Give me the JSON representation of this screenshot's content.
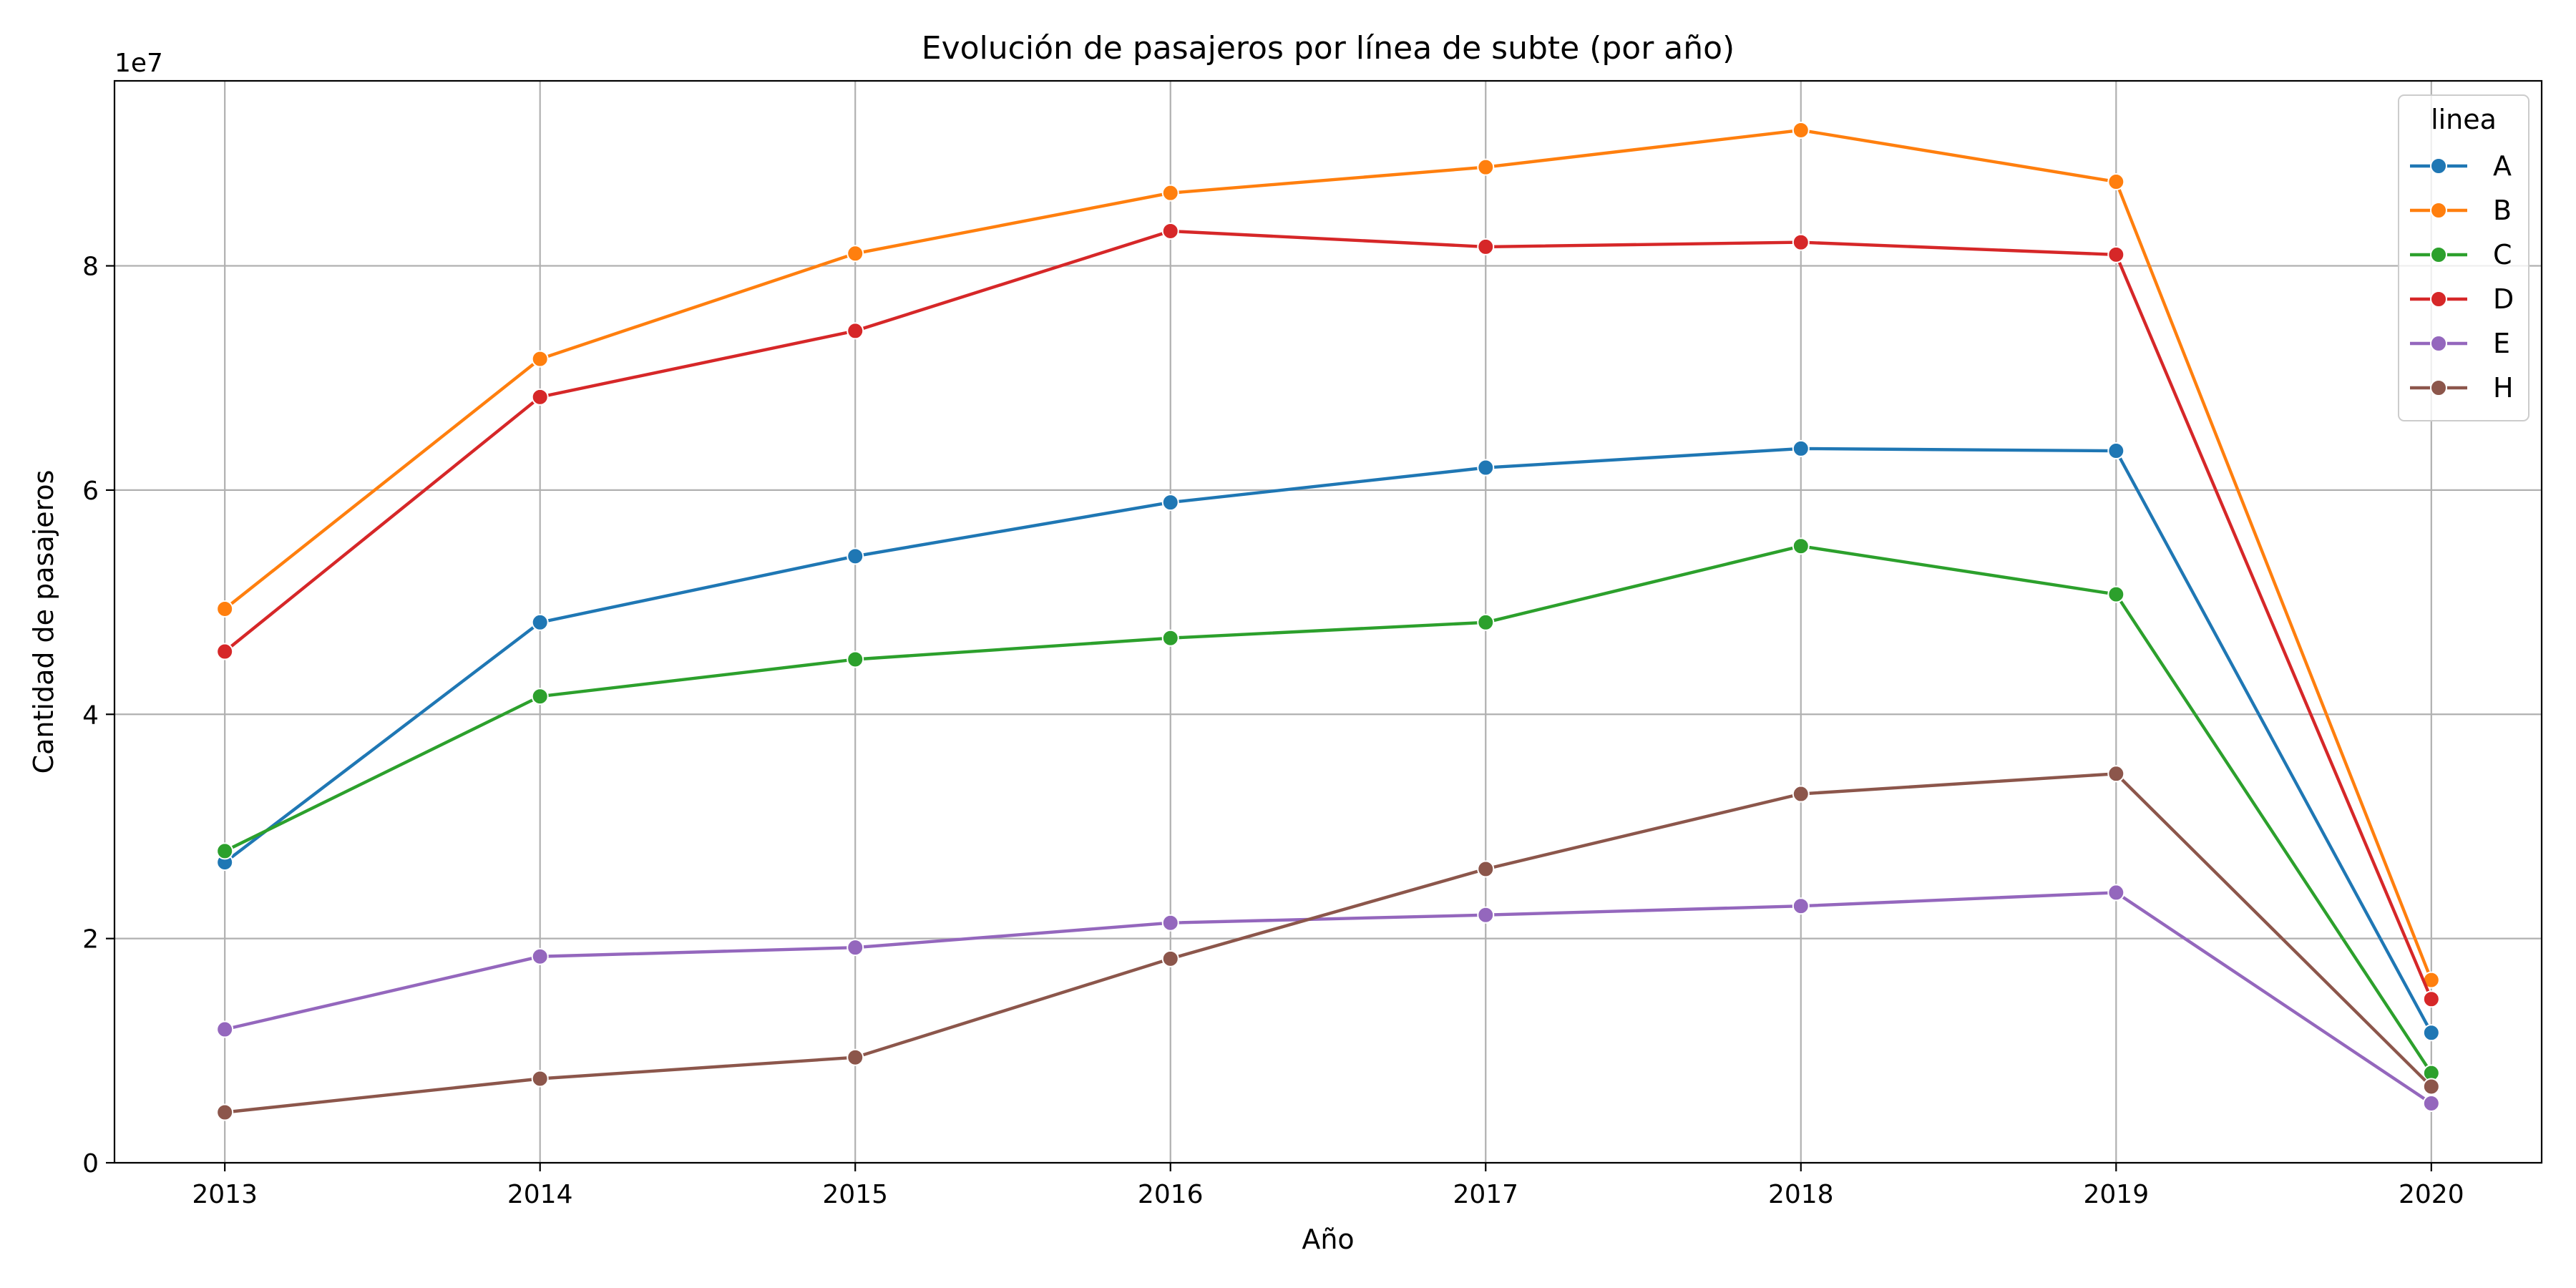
{
  "chart_data": {
    "type": "line",
    "title": "Evolución de pasajeros por línea de subte (por año)",
    "xlabel": "Año",
    "ylabel": "Cantidad de pasajeros",
    "y_scale_note": "1e7",
    "x": [
      2013,
      2014,
      2015,
      2016,
      2017,
      2018,
      2019,
      2020
    ],
    "xlim": [
      2012.65,
      2020.35
    ],
    "ylim": [
      0,
      96500000
    ],
    "yticks": [
      0,
      20000000,
      40000000,
      60000000,
      80000000
    ],
    "ytick_labels": [
      "0",
      "2",
      "4",
      "6",
      "8"
    ],
    "xtick_labels": [
      "2013",
      "2014",
      "2015",
      "2016",
      "2017",
      "2018",
      "2019",
      "2020"
    ],
    "grid": true,
    "legend": {
      "title": "linea",
      "placement": "top-right"
    },
    "series": [
      {
        "name": "A",
        "color": "#1f77b4",
        "values": [
          26800000,
          48200000,
          54100000,
          58900000,
          62000000,
          63700000,
          63500000,
          11600000
        ]
      },
      {
        "name": "B",
        "color": "#ff7f0e",
        "values": [
          49400000,
          71700000,
          81100000,
          86500000,
          88800000,
          92100000,
          87500000,
          16300000
        ]
      },
      {
        "name": "C",
        "color": "#2ca02c",
        "values": [
          27800000,
          41600000,
          44900000,
          46800000,
          48200000,
          55000000,
          50700000,
          8000000
        ]
      },
      {
        "name": "D",
        "color": "#d62728",
        "values": [
          45600000,
          68300000,
          74200000,
          83100000,
          81700000,
          82100000,
          81000000,
          14600000
        ]
      },
      {
        "name": "E",
        "color": "#9467bd",
        "values": [
          11900000,
          18400000,
          19200000,
          21400000,
          22100000,
          22900000,
          24100000,
          5300000
        ]
      },
      {
        "name": "H",
        "color": "#8c564b",
        "values": [
          4500000,
          7500000,
          9400000,
          18200000,
          26200000,
          32900000,
          34700000,
          6800000
        ]
      }
    ]
  }
}
